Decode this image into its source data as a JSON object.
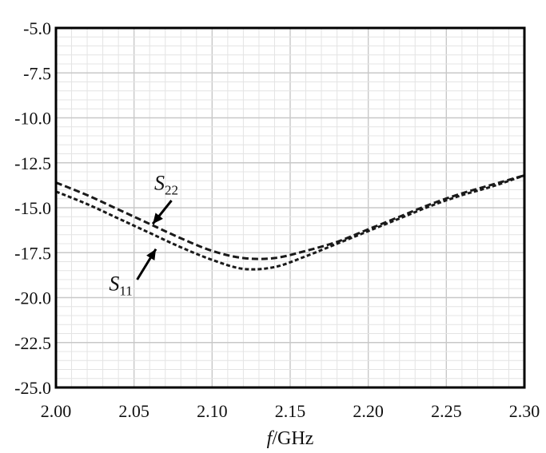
{
  "chart_data": {
    "type": "line",
    "title": "",
    "xlabel_italic": "f",
    "xlabel_rest": "/GHz",
    "ylabel": "",
    "xlim": [
      2.0,
      2.3
    ],
    "ylim": [
      -25.0,
      -5.0
    ],
    "x_ticks": [
      "2.00",
      "2.05",
      "2.10",
      "2.15",
      "2.20",
      "2.25",
      "2.30"
    ],
    "y_ticks": [
      "-5.0",
      "-7.5",
      "-10.0",
      "-12.5",
      "-15.0",
      "-17.5",
      "-20.0",
      "-22.5",
      "-25.0"
    ],
    "grid": true,
    "series": [
      {
        "name": "S22",
        "label_main": "S",
        "label_sub": "22",
        "x": [
          2.0,
          2.02,
          2.04,
          2.06,
          2.08,
          2.1,
          2.12,
          2.14,
          2.16,
          2.18,
          2.2,
          2.22,
          2.24,
          2.26,
          2.28,
          2.3
        ],
        "y": [
          -13.6,
          -14.3,
          -15.1,
          -15.9,
          -16.7,
          -17.4,
          -17.8,
          -17.8,
          -17.4,
          -16.9,
          -16.2,
          -15.5,
          -14.8,
          -14.2,
          -13.7,
          -13.2
        ]
      },
      {
        "name": "S11",
        "label_main": "S",
        "label_sub": "11",
        "x": [
          2.0,
          2.02,
          2.04,
          2.06,
          2.08,
          2.1,
          2.12,
          2.14,
          2.16,
          2.18,
          2.2,
          2.22,
          2.24,
          2.26,
          2.28,
          2.3
        ],
        "y": [
          -14.1,
          -14.8,
          -15.6,
          -16.4,
          -17.2,
          -17.9,
          -18.4,
          -18.3,
          -17.7,
          -17.0,
          -16.3,
          -15.6,
          -14.9,
          -14.3,
          -13.8,
          -13.2
        ]
      }
    ],
    "annotations": [
      {
        "series": "S22",
        "text_x": 2.063,
        "text_y": -14.0,
        "arrow_from": [
          2.074,
          -14.6
        ],
        "arrow_to": [
          2.062,
          -15.9
        ]
      },
      {
        "series": "S11",
        "text_x": 2.034,
        "text_y": -19.6,
        "arrow_from": [
          2.052,
          -19.0
        ],
        "arrow_to": [
          2.064,
          -17.3
        ]
      }
    ]
  }
}
